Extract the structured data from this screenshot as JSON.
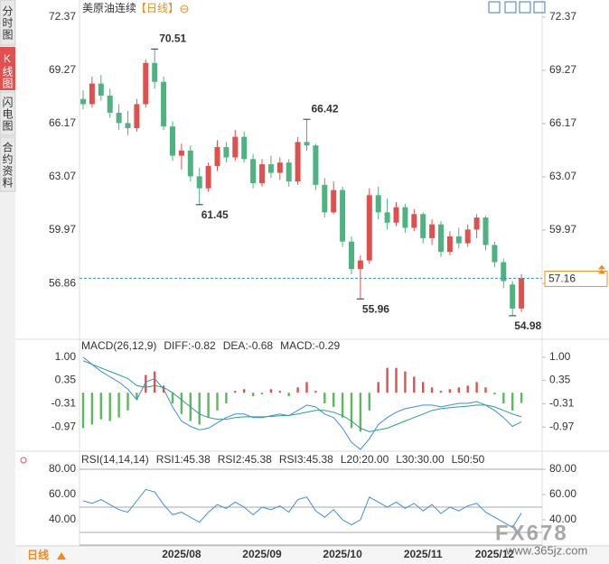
{
  "tabs": [
    "分时图",
    "K线图",
    "闪电图",
    "合约资料"
  ],
  "period_button": "日线",
  "watermark": {
    "logo": "FX678",
    "url": "www.365jz.com"
  },
  "chart_data": [
    {
      "type": "candlestick",
      "title": "美原油连续",
      "subtitle": "【日线】",
      "open": [
        67.6,
        67.3,
        68.5,
        67.8,
        66.8,
        66.2,
        65.9,
        67.3,
        69.7,
        68.6,
        66.0,
        64.3,
        64.6,
        63.1,
        62.4,
        63.7,
        64.8,
        64.2,
        65.4,
        64.1,
        62.7,
        63.8,
        63.3,
        63.9,
        62.8,
        65.1,
        64.9,
        62.6,
        61.0,
        62.3,
        59.3,
        57.7,
        58.2,
        62.0,
        61.0,
        60.4,
        61.3,
        60.1,
        60.9,
        59.5,
        60.3,
        58.7,
        59.6,
        59.2,
        60.0,
        60.7,
        59.1,
        58.1,
        56.8,
        55.4
      ],
      "high": [
        68.1,
        68.9,
        69.0,
        68.2,
        67.3,
        66.9,
        67.6,
        69.9,
        70.51,
        68.9,
        66.3,
        65.0,
        64.9,
        63.6,
        63.9,
        65.2,
        65.1,
        65.8,
        65.7,
        64.4,
        64.1,
        64.3,
        64.2,
        64.1,
        65.4,
        66.42,
        65.0,
        63.0,
        62.8,
        62.5,
        59.6,
        58.5,
        62.4,
        62.5,
        61.8,
        61.6,
        61.5,
        61.2,
        61.0,
        60.6,
        60.5,
        59.9,
        60.1,
        60.3,
        60.9,
        60.8,
        59.3,
        58.3,
        57.0,
        57.4
      ],
      "low": [
        67.0,
        67.1,
        67.5,
        66.5,
        65.8,
        65.5,
        65.7,
        67.1,
        68.2,
        65.8,
        64.0,
        63.5,
        62.8,
        61.45,
        62.2,
        63.4,
        63.9,
        64.0,
        63.9,
        62.4,
        62.5,
        63.0,
        62.9,
        62.5,
        62.6,
        64.6,
        62.3,
        60.7,
        60.9,
        59.0,
        57.4,
        55.96,
        58.0,
        60.6,
        60.0,
        60.2,
        59.8,
        59.9,
        59.2,
        59.1,
        58.4,
        58.5,
        58.9,
        59.0,
        59.5,
        58.8,
        57.8,
        56.6,
        54.98,
        55.2
      ],
      "close": [
        67.3,
        68.5,
        67.8,
        66.8,
        66.2,
        65.9,
        67.3,
        69.7,
        68.6,
        66.0,
        64.3,
        64.6,
        63.1,
        62.4,
        63.7,
        64.8,
        64.2,
        65.4,
        64.1,
        62.7,
        63.8,
        63.3,
        63.9,
        62.8,
        65.1,
        64.9,
        62.6,
        61.0,
        62.3,
        59.3,
        57.7,
        58.2,
        62.0,
        61.0,
        60.4,
        61.3,
        60.1,
        60.9,
        59.5,
        60.3,
        58.7,
        59.6,
        59.2,
        60.0,
        60.7,
        59.1,
        58.1,
        57.0,
        55.4,
        57.16
      ],
      "high_labels": [
        null,
        null,
        null,
        null,
        null,
        null,
        null,
        null,
        "70.51",
        null,
        null,
        null,
        null,
        null,
        null,
        null,
        null,
        null,
        null,
        null,
        null,
        null,
        null,
        null,
        null,
        "66.42",
        null,
        null,
        null,
        null,
        null,
        null,
        null,
        null,
        null,
        null,
        null,
        null,
        null,
        null,
        null,
        null,
        null,
        null,
        null,
        null,
        null,
        null,
        null,
        null
      ],
      "low_labels": [
        null,
        null,
        null,
        null,
        null,
        null,
        null,
        null,
        null,
        null,
        null,
        null,
        null,
        "61.45",
        null,
        null,
        null,
        null,
        null,
        null,
        null,
        null,
        null,
        null,
        null,
        null,
        null,
        null,
        null,
        null,
        null,
        "55.96",
        null,
        null,
        null,
        null,
        null,
        null,
        null,
        null,
        null,
        null,
        null,
        null,
        null,
        null,
        null,
        null,
        "54.98",
        null
      ],
      "up_color": "#e0504f",
      "down_color": "#4db380",
      "last_price_color": "#f08c1e",
      "last_line_color": "#3a8fbf",
      "ylim": [
        53.82,
        72.84
      ],
      "yticks": [
        72.37,
        69.27,
        66.17,
        63.07,
        59.97,
        56.86
      ]
    },
    {
      "type": "macd",
      "title": "MACD(26,12,9)",
      "series": [
        {
          "name": "DIFF:-0.82",
          "color": "#3d8fd6",
          "values": [
            1.0,
            0.8,
            0.6,
            0.45,
            0.3,
            0.1,
            -0.2,
            0.3,
            0.4,
            0.1,
            -0.4,
            -0.8,
            -0.95,
            -1.05,
            -1.0,
            -0.85,
            -0.7,
            -0.6,
            -0.6,
            -0.7,
            -0.7,
            -0.65,
            -0.6,
            -0.65,
            -0.5,
            -0.35,
            -0.4,
            -0.6,
            -0.7,
            -1.0,
            -1.4,
            -1.6,
            -1.3,
            -0.9,
            -0.7,
            -0.55,
            -0.45,
            -0.4,
            -0.35,
            -0.35,
            -0.4,
            -0.35,
            -0.3,
            -0.3,
            -0.25,
            -0.35,
            -0.5,
            -0.7,
            -0.95,
            -0.82
          ]
        },
        {
          "name": "DEA:-0.68",
          "color": "#2a9d8f",
          "values": [
            0.9,
            0.8,
            0.7,
            0.6,
            0.5,
            0.4,
            0.2,
            0.15,
            0.2,
            0.15,
            0.0,
            -0.2,
            -0.4,
            -0.6,
            -0.7,
            -0.75,
            -0.75,
            -0.7,
            -0.68,
            -0.68,
            -0.68,
            -0.67,
            -0.65,
            -0.64,
            -0.6,
            -0.55,
            -0.5,
            -0.5,
            -0.55,
            -0.65,
            -0.8,
            -1.0,
            -1.1,
            -1.05,
            -1.0,
            -0.9,
            -0.8,
            -0.7,
            -0.6,
            -0.5,
            -0.45,
            -0.42,
            -0.4,
            -0.38,
            -0.35,
            -0.35,
            -0.4,
            -0.5,
            -0.6,
            -0.68
          ]
        },
        {
          "name": "MACD:-0.29",
          "color": "#4a90d9",
          "bars": true,
          "up_color": "#d9534f",
          "down_color": "#5cb85c",
          "values": [
            -1.0,
            -0.9,
            -0.75,
            -0.8,
            -0.7,
            -0.5,
            -0.2,
            0.5,
            0.6,
            0.2,
            -0.3,
            -0.6,
            -0.8,
            -0.9,
            -0.7,
            -0.5,
            -0.3,
            0.05,
            0.1,
            -0.1,
            -0.05,
            0.1,
            0.05,
            -0.1,
            0.15,
            0.3,
            0.05,
            -0.3,
            -0.4,
            -0.7,
            -1.0,
            -1.1,
            -0.5,
            0.3,
            0.7,
            0.7,
            0.6,
            0.45,
            0.3,
            0.15,
            0.05,
            0.1,
            0.15,
            0.2,
            0.3,
            0.15,
            -0.05,
            -0.3,
            -0.5,
            -0.29
          ]
        }
      ],
      "ylim": [
        -1.65,
        1.15
      ],
      "yticks": [
        {
          "value": 1,
          "label": "1.00"
        },
        0.35,
        -0.31,
        -0.97
      ]
    },
    {
      "type": "line",
      "title": "RSI(14,14,14)",
      "categories": [
        null,
        null,
        null,
        null,
        null,
        null,
        null,
        null,
        null,
        null,
        null,
        "2025/08",
        null,
        null,
        null,
        null,
        null,
        null,
        null,
        null,
        "2025/09",
        null,
        null,
        null,
        null,
        null,
        null,
        null,
        null,
        "2025/10",
        null,
        null,
        null,
        null,
        null,
        null,
        null,
        null,
        "2025/11",
        null,
        null,
        null,
        null,
        null,
        null,
        null,
        "2025/12",
        null,
        null,
        null
      ],
      "series": [
        {
          "name": "RSI1:45.38",
          "color": "#3d8fd6",
          "values": [
            55,
            53,
            56,
            52,
            48,
            46,
            55,
            64,
            62,
            52,
            44,
            46,
            42,
            38,
            46,
            52,
            49,
            54,
            50,
            44,
            50,
            48,
            51,
            46,
            56,
            58,
            47,
            42,
            48,
            40,
            36,
            40,
            58,
            54,
            50,
            54,
            49,
            53,
            47,
            52,
            45,
            50,
            47,
            51,
            53,
            46,
            42,
            38,
            34,
            45.38
          ]
        },
        {
          "name": "RSI2:45.38",
          "color": "#4aa3df"
        },
        {
          "name": "RSI3:45.38",
          "color": "#5bb0e6"
        }
      ],
      "levels": [
        {
          "label": "L20:20.00",
          "value": 20
        },
        {
          "label": "L30:30.00",
          "value": 30
        },
        {
          "label": "L50:50",
          "value": 50
        }
      ],
      "level_color": "#aaaaaa",
      "ylim": [
        20,
        85
      ],
      "yticks": [
        {
          "value": 80,
          "label": "80.00"
        },
        {
          "value": 60,
          "label": "60.00"
        },
        {
          "value": 40,
          "label": "40.00"
        }
      ]
    }
  ]
}
